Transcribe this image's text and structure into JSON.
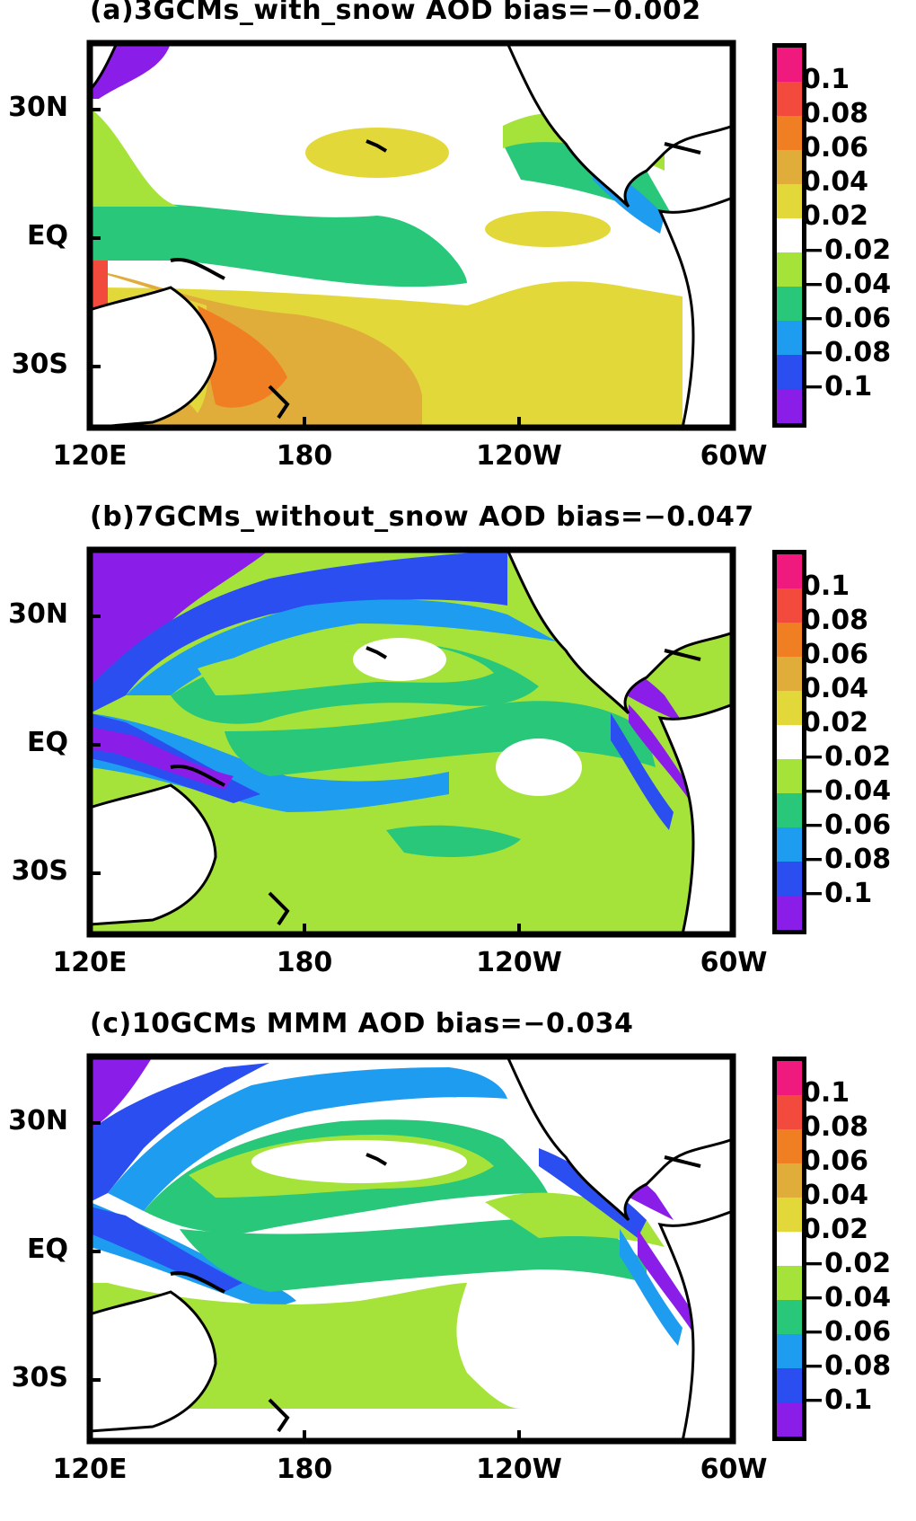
{
  "panels": [
    {
      "id": "a",
      "title": "(a)3GCMs_with_snow AOD bias=−0.002",
      "bias": -0.002,
      "dominant_fill": "mixed",
      "regions": [
        {
          "name": "north-pacific-white",
          "color": "#ffffff"
        },
        {
          "name": "tropical-green",
          "color": "#2ecc71"
        },
        {
          "name": "southwest-orange",
          "color": "#f08a24"
        },
        {
          "name": "south-yellow",
          "color": "#e8d83a"
        }
      ]
    },
    {
      "id": "b",
      "title": "(b)7GCMs_without_snow AOD bias=−0.047",
      "bias": -0.047,
      "dominant_fill": "negative"
    },
    {
      "id": "c",
      "title": "(c)10GCMs MMM AOD bias=−0.034",
      "bias": -0.034,
      "dominant_fill": "negative"
    }
  ],
  "axes": {
    "lat_labels": [
      "30N",
      "EQ",
      "30S"
    ],
    "lon_labels": [
      "120E",
      "180",
      "120W",
      "60W"
    ]
  },
  "colorbar": {
    "labels": [
      "0.1",
      "0.08",
      "0.06",
      "0.04",
      "0.02",
      "−0.02",
      "−0.04",
      "−0.06",
      "−0.08",
      "−0.1"
    ],
    "colors": [
      "#f0197d",
      "#f24a3c",
      "#f07f24",
      "#e0ad3a",
      "#e3d83a",
      "#ffffff",
      "#a6e33a",
      "#28c77a",
      "#1e9cf0",
      "#2a4ef0",
      "#8a1ee8"
    ]
  },
  "colors": {
    "land": "#ffffff",
    "frame": "#000000"
  }
}
